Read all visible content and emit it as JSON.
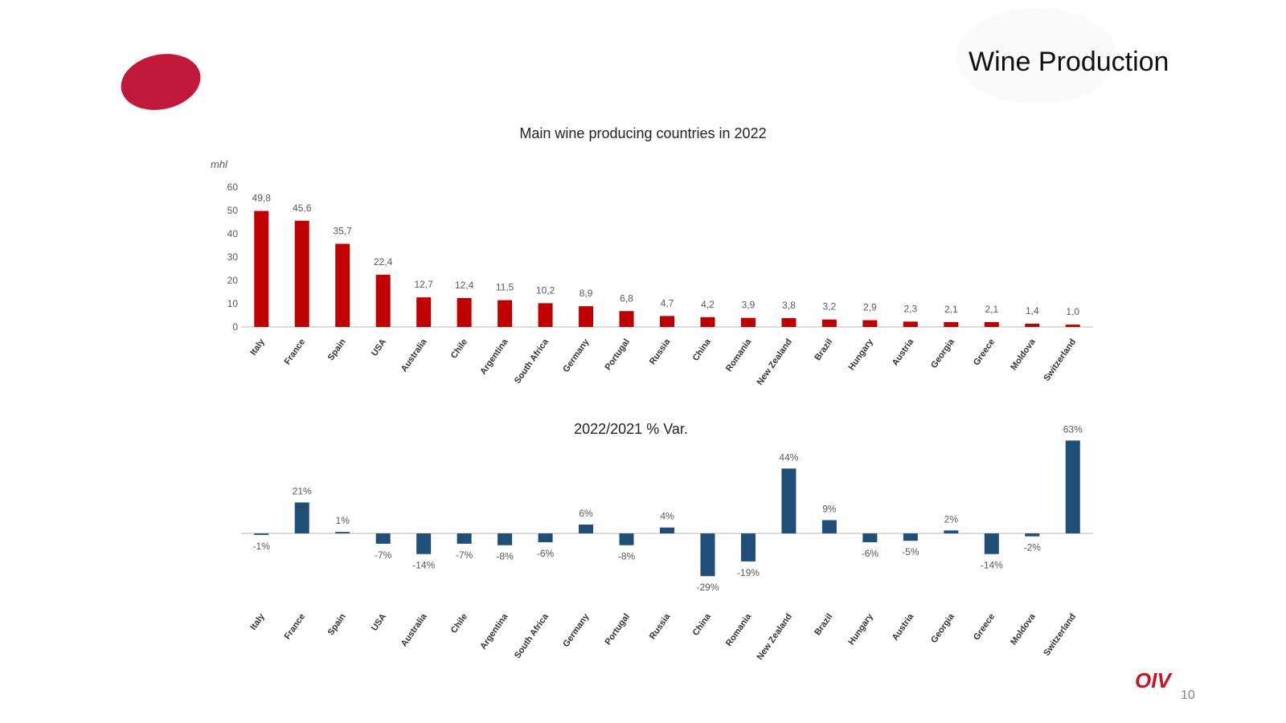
{
  "slide": {
    "title": "Wine Production",
    "brand": "OIV",
    "page_number": "10"
  },
  "colors": {
    "production_bar": "#c00000",
    "variation_bar": "#1f4e79",
    "axis": "#d0d0d0",
    "label_text": "#595959",
    "title_text": "#222222",
    "brand": "#cc1122"
  },
  "chart_data": [
    {
      "type": "bar",
      "title": "Main wine producing countries in 2022",
      "ylabel": "mhl",
      "ylim": [
        0,
        60
      ],
      "yticks": [
        "0",
        "10",
        "20",
        "30",
        "40",
        "50",
        "60"
      ],
      "categories": [
        "Italy",
        "France",
        "Spain",
        "USA",
        "Australia",
        "Chile",
        "Argentina",
        "South Africa",
        "Germany",
        "Portugal",
        "Russia",
        "China",
        "Romania",
        "New Zealand",
        "Brazil",
        "Hungary",
        "Austria",
        "Georgia",
        "Greece",
        "Moldova",
        "Switzerland"
      ],
      "values": [
        49.8,
        45.6,
        35.7,
        22.4,
        12.7,
        12.4,
        11.5,
        10.2,
        8.9,
        6.8,
        4.7,
        4.2,
        3.9,
        3.8,
        3.2,
        2.9,
        2.3,
        2.1,
        2.1,
        1.4,
        1.0
      ],
      "labels": [
        "49,8",
        "45,6",
        "35,7",
        "22,4",
        "12,7",
        "12,4",
        "11,5",
        "10,2",
        "8,9",
        "6,8",
        "4,7",
        "4,2",
        "3,9",
        "3,8",
        "3,2",
        "2,9",
        "2,3",
        "2,1",
        "2,1",
        "1,4",
        "1,0"
      ],
      "grid": false,
      "legend": "none"
    },
    {
      "type": "bar",
      "title": "2022/2021 % Var.",
      "ylim": [
        -35,
        65
      ],
      "categories": [
        "Italy",
        "France",
        "Spain",
        "USA",
        "Australia",
        "Chile",
        "Argentina",
        "South Africa",
        "Germany",
        "Portugal",
        "Russia",
        "China",
        "Romania",
        "New Zealand",
        "Brazil",
        "Hungary",
        "Austria",
        "Georgia",
        "Greece",
        "Moldova",
        "Switzerland"
      ],
      "values": [
        -1,
        21,
        1,
        -7,
        -14,
        -7,
        -8,
        -6,
        6,
        -8,
        4,
        -29,
        -19,
        44,
        9,
        -6,
        -5,
        2,
        -14,
        -2,
        63
      ],
      "labels": [
        "-1%",
        "21%",
        "1%",
        "-7%",
        "-14%",
        "-7%",
        "-8%",
        "-6%",
        "6%",
        "-8%",
        "4%",
        "-29%",
        "-19%",
        "44%",
        "9%",
        "-6%",
        "-5%",
        "2%",
        "-14%",
        "-2%",
        "63%"
      ],
      "grid": false,
      "legend": "none"
    }
  ]
}
